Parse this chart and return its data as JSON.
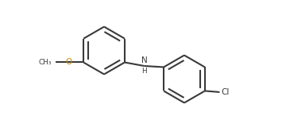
{
  "bg_color": "#ffffff",
  "line_color": "#3a3a3a",
  "o_color": "#cc8800",
  "n_color": "#3a3a3a",
  "line_width": 1.5,
  "font_size": 7.5,
  "figsize": [
    3.6,
    1.51
  ],
  "dpi": 100,
  "xlim": [
    -0.5,
    9.5
  ],
  "ylim": [
    0.5,
    5.5
  ]
}
